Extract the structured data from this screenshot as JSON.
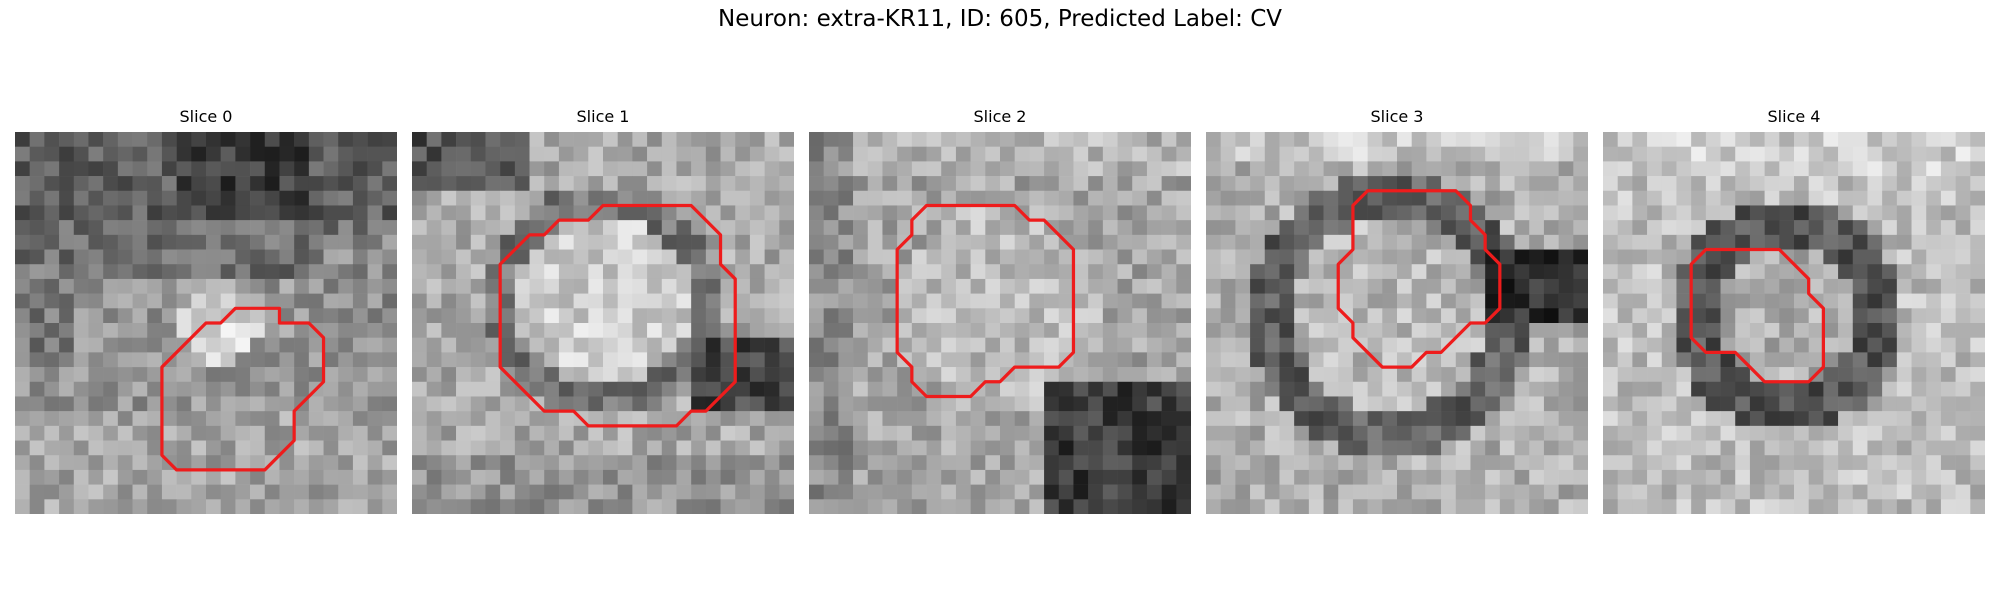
{
  "figure": {
    "title": "Neuron: extra-KR11, ID: 605, Predicted Label: CV"
  },
  "colors": {
    "contour": "#ee1c1c",
    "background": "#ffffff"
  },
  "panels": [
    {
      "title": "Slice 0",
      "intensity_pattern": "dark-top-band, bright-center-right",
      "contour": [
        [
          16,
          5
        ],
        [
          18,
          5
        ],
        [
          19,
          6
        ],
        [
          19,
          9
        ],
        [
          17,
          11
        ],
        [
          17,
          13
        ],
        [
          15,
          15
        ],
        [
          9,
          15
        ],
        [
          8,
          14
        ],
        [
          8,
          8
        ],
        [
          11,
          5
        ],
        [
          12,
          5
        ],
        [
          13,
          4
        ],
        [
          16,
          4
        ]
      ]
    },
    {
      "title": "Slice 1",
      "intensity_pattern": "large bright cell body with dark rim",
      "contour": [
        [
          14,
          0
        ],
        [
          16,
          0
        ],
        [
          18,
          2
        ],
        [
          18,
          4
        ],
        [
          19,
          5
        ],
        [
          19,
          12
        ],
        [
          17,
          14
        ],
        [
          16,
          14
        ],
        [
          15,
          15
        ],
        [
          9,
          15
        ],
        [
          8,
          14
        ],
        [
          6,
          14
        ],
        [
          3,
          11
        ],
        [
          3,
          4
        ],
        [
          5,
          2
        ],
        [
          6,
          2
        ],
        [
          7,
          1
        ],
        [
          9,
          1
        ],
        [
          10,
          0
        ]
      ]
    },
    {
      "title": "Slice 2",
      "intensity_pattern": "uniform gray with dark lower-right blob",
      "contour": [
        [
          7,
          0
        ],
        [
          12,
          0
        ],
        [
          13,
          1
        ],
        [
          14,
          1
        ],
        [
          16,
          3
        ],
        [
          16,
          10
        ],
        [
          15,
          11
        ],
        [
          12,
          11
        ],
        [
          11,
          12
        ],
        [
          10,
          12
        ],
        [
          9,
          13
        ],
        [
          6,
          13
        ],
        [
          5,
          12
        ],
        [
          5,
          11
        ],
        [
          4,
          10
        ],
        [
          4,
          3
        ],
        [
          5,
          2
        ],
        [
          5,
          1
        ],
        [
          6,
          0
        ]
      ]
    },
    {
      "title": "Slice 3",
      "intensity_pattern": "ring-shaped dark boundary",
      "contour": [
        [
          7,
          0
        ],
        [
          10,
          0
        ],
        [
          11,
          1
        ],
        [
          11,
          2
        ],
        [
          12,
          3
        ],
        [
          12,
          4
        ],
        [
          13,
          5
        ],
        [
          13,
          8
        ],
        [
          12,
          9
        ],
        [
          11,
          9
        ],
        [
          9,
          11
        ],
        [
          8,
          11
        ],
        [
          7,
          12
        ],
        [
          5,
          12
        ],
        [
          3,
          10
        ],
        [
          3,
          9
        ],
        [
          2,
          8
        ],
        [
          2,
          5
        ],
        [
          3,
          4
        ],
        [
          3,
          1
        ],
        [
          4,
          0
        ]
      ]
    },
    {
      "title": "Slice 4",
      "intensity_pattern": "compact dark ring around brighter center",
      "contour": [
        [
          9,
          0
        ],
        [
          11,
          2
        ],
        [
          11,
          3
        ],
        [
          12,
          4
        ],
        [
          12,
          8
        ],
        [
          11,
          9
        ],
        [
          8,
          9
        ],
        [
          7,
          8
        ],
        [
          6,
          7
        ],
        [
          4,
          7
        ],
        [
          3,
          6
        ],
        [
          3,
          1
        ],
        [
          4,
          0
        ]
      ]
    }
  ]
}
